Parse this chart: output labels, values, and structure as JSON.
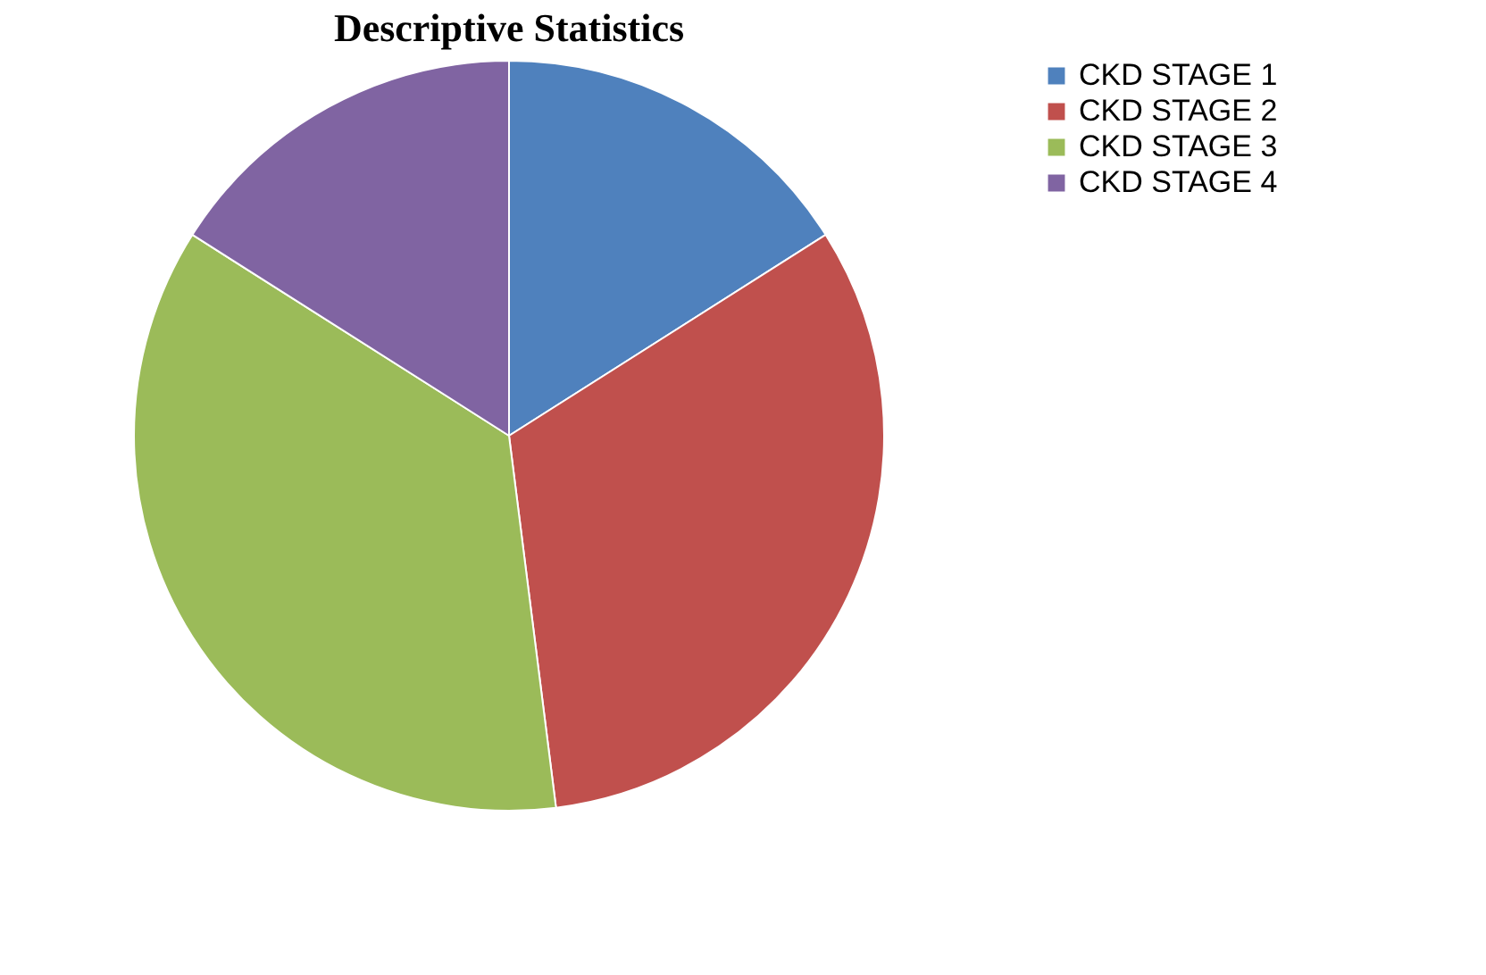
{
  "chart_data": {
    "type": "pie",
    "title": "Descriptive Statistics",
    "categories": [
      "CKD STAGE 1",
      "CKD STAGE 2",
      "CKD STAGE 3",
      "CKD STAGE 4"
    ],
    "values": [
      16,
      32,
      36,
      16
    ],
    "colors": [
      "#4f81bd",
      "#c0504d",
      "#9bbb59",
      "#8064a2"
    ],
    "legend": "right"
  }
}
